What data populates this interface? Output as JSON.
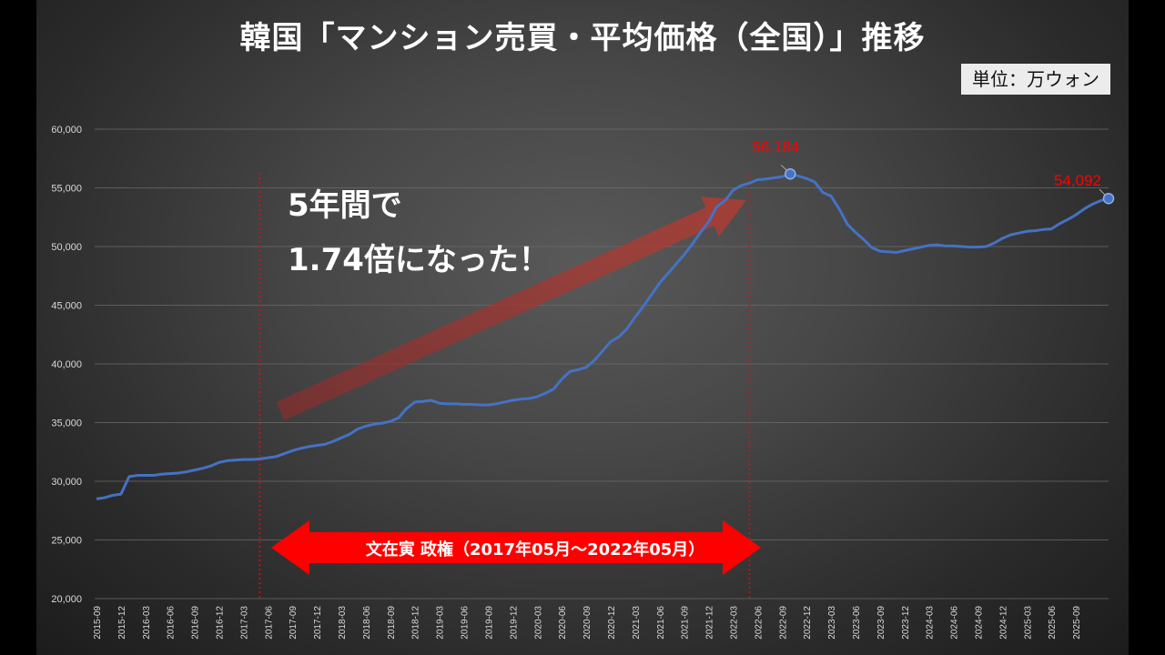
{
  "title": "韓国「マンション売買・平均価格（全国）」推移",
  "unit_label": "単位：万ウォン",
  "annotation": {
    "line1": "5年間で",
    "line2": "1.74倍になった！"
  },
  "regime": {
    "label": "文在寅 政権（2017年05月～2022年05月）",
    "start": "2017-05",
    "end": "2022-05"
  },
  "colors": {
    "line": "#4472c4",
    "accent_red": "#ff0000",
    "arrow_red": "#b03030"
  },
  "chart_data": {
    "type": "line",
    "ylim": [
      20000,
      60000
    ],
    "ytick_labels": [
      "20,000",
      "25,000",
      "30,000",
      "35,000",
      "40,000",
      "45,000",
      "50,000",
      "55,000",
      "60,000"
    ],
    "xtick_labels": [
      "2015-09",
      "2015-12",
      "2016-03",
      "2016-06",
      "2016-09",
      "2016-12",
      "2017-03",
      "2017-06",
      "2017-09",
      "2017-12",
      "2018-03",
      "2018-06",
      "2018-09",
      "2018-12",
      "2019-03",
      "2019-06",
      "2019-09",
      "2019-12",
      "2020-03",
      "2020-06",
      "2020-09",
      "2020-12",
      "2021-03",
      "2021-06",
      "2021-09",
      "2021-12",
      "2022-03",
      "2022-06",
      "2022-09",
      "2022-12",
      "2023-03",
      "2023-06",
      "2023-09",
      "2023-12",
      "2024-03",
      "2024-06",
      "2024-09",
      "2024-12",
      "2025-03",
      "2025-06",
      "2025-09"
    ],
    "grid": true,
    "series": [
      {
        "values": [
          28500,
          28600,
          28800,
          28900,
          30400,
          30500,
          30500,
          30500,
          30600,
          30650,
          30700,
          30800,
          30950,
          31100,
          31300,
          31600,
          31750,
          31800,
          31850,
          31850,
          31900,
          32000,
          32100,
          32350,
          32600,
          32800,
          32950,
          33050,
          33150,
          33400,
          33700,
          34000,
          34450,
          34700,
          34850,
          34950,
          35100,
          35400,
          36200,
          36750,
          36800,
          36900,
          36650,
          36600,
          36600,
          36550,
          36550,
          36500,
          36500,
          36600,
          36750,
          36900,
          37000,
          37050,
          37200,
          37500,
          37850,
          38700,
          39350,
          39500,
          39700,
          40300,
          41100,
          41900,
          42300,
          43000,
          44000,
          44900,
          45900,
          46900,
          47700,
          48500,
          49300,
          50200,
          51200,
          52100,
          53400,
          53900,
          54800,
          55200,
          55400,
          55700,
          55750,
          55850,
          55950,
          56184,
          56000,
          55800,
          55500,
          54600,
          54300,
          53200,
          51900,
          51200,
          50600,
          49900,
          49600,
          49550,
          49500,
          49650,
          49800,
          49950,
          50100,
          50150,
          50050,
          50050,
          50000,
          49950,
          49950,
          50000,
          50300,
          50700,
          51000,
          51150,
          51300,
          51350,
          51450,
          51500,
          51950,
          52300,
          52700,
          53200,
          53600,
          53900,
          54092
        ],
        "point_labels": [
          {
            "value": "56,184"
          },
          {
            "value": "54,092"
          }
        ]
      }
    ]
  }
}
